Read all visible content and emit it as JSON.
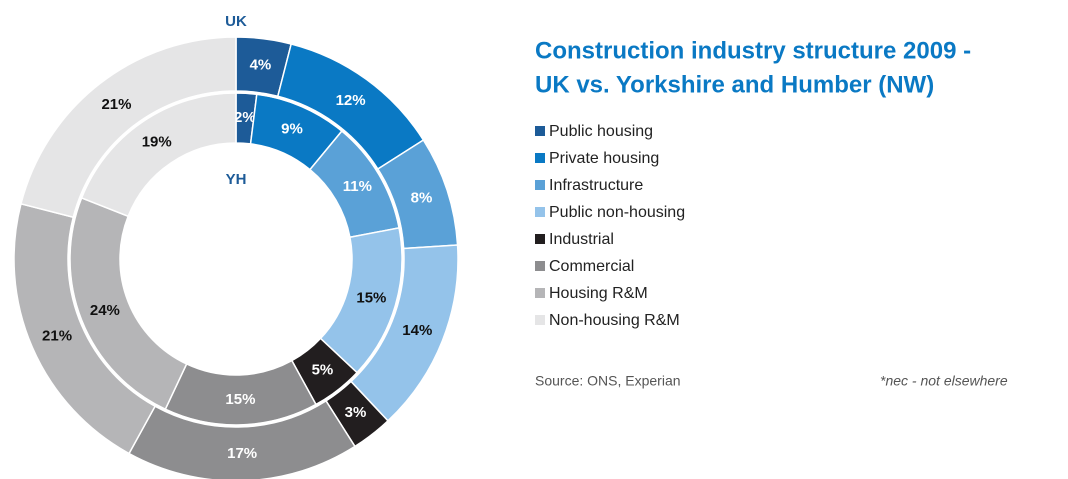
{
  "chart_data": {
    "type": "pie",
    "title": [
      "Construction industry structure 2009 -",
      "UK vs. Yorkshire and Humber (NW)"
    ],
    "categories": [
      "Public housing",
      "Private housing",
      "Infrastructure",
      "Public non-housing",
      "Industrial",
      "Commercial",
      "Housing R&M",
      "Non-housing R&M"
    ],
    "colors": [
      "#1d5b98",
      "#0a79c4",
      "#5aa1d7",
      "#94c3ea",
      "#221e1f",
      "#8d8d8f",
      "#b5b5b7",
      "#e5e5e6"
    ],
    "series": [
      {
        "name": "UK",
        "values": [
          4,
          12,
          8,
          14,
          3,
          17,
          21,
          21
        ],
        "value_labels": [
          "4%",
          "12%",
          "8%",
          "14%",
          "3%",
          "17%",
          "21%",
          "21%"
        ]
      },
      {
        "name": "YH",
        "values": [
          2,
          9,
          11,
          15,
          5,
          15,
          24,
          19
        ],
        "value_labels": [
          "2%",
          "9%",
          "11%",
          "15%",
          "5%",
          "15%",
          "24%",
          "19%"
        ]
      }
    ],
    "source": "Source: ONS, Experian",
    "note": "*nec - not elsewhere"
  }
}
